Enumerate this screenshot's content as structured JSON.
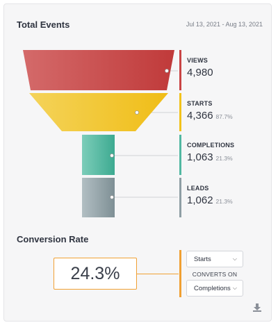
{
  "header": {
    "title": "Total Events",
    "date_range": "Jul 13, 2021 - Aug 13, 2021"
  },
  "funnel": {
    "stages": [
      {
        "label": "VIEWS",
        "value": "4,980",
        "percent": "",
        "color": "#c94444"
      },
      {
        "label": "STARTS",
        "value": "4,366",
        "percent": "87.7%",
        "color": "#f2c21b"
      },
      {
        "label": "COMPLETIONS",
        "value": "1,063",
        "percent": "21.3%",
        "color": "#52b8a2"
      },
      {
        "label": "LEADS",
        "value": "1,062",
        "percent": "21.3%",
        "color": "#8e9ea4"
      }
    ]
  },
  "conversion": {
    "title": "Conversion Rate",
    "rate": "24.3%",
    "from_select": "Starts",
    "converts_on_label": "CONVERTS ON",
    "to_select": "Completions",
    "accent": "#f0a033"
  },
  "icons": {
    "download": "download-icon",
    "chevron": "chevron-down-icon"
  }
}
